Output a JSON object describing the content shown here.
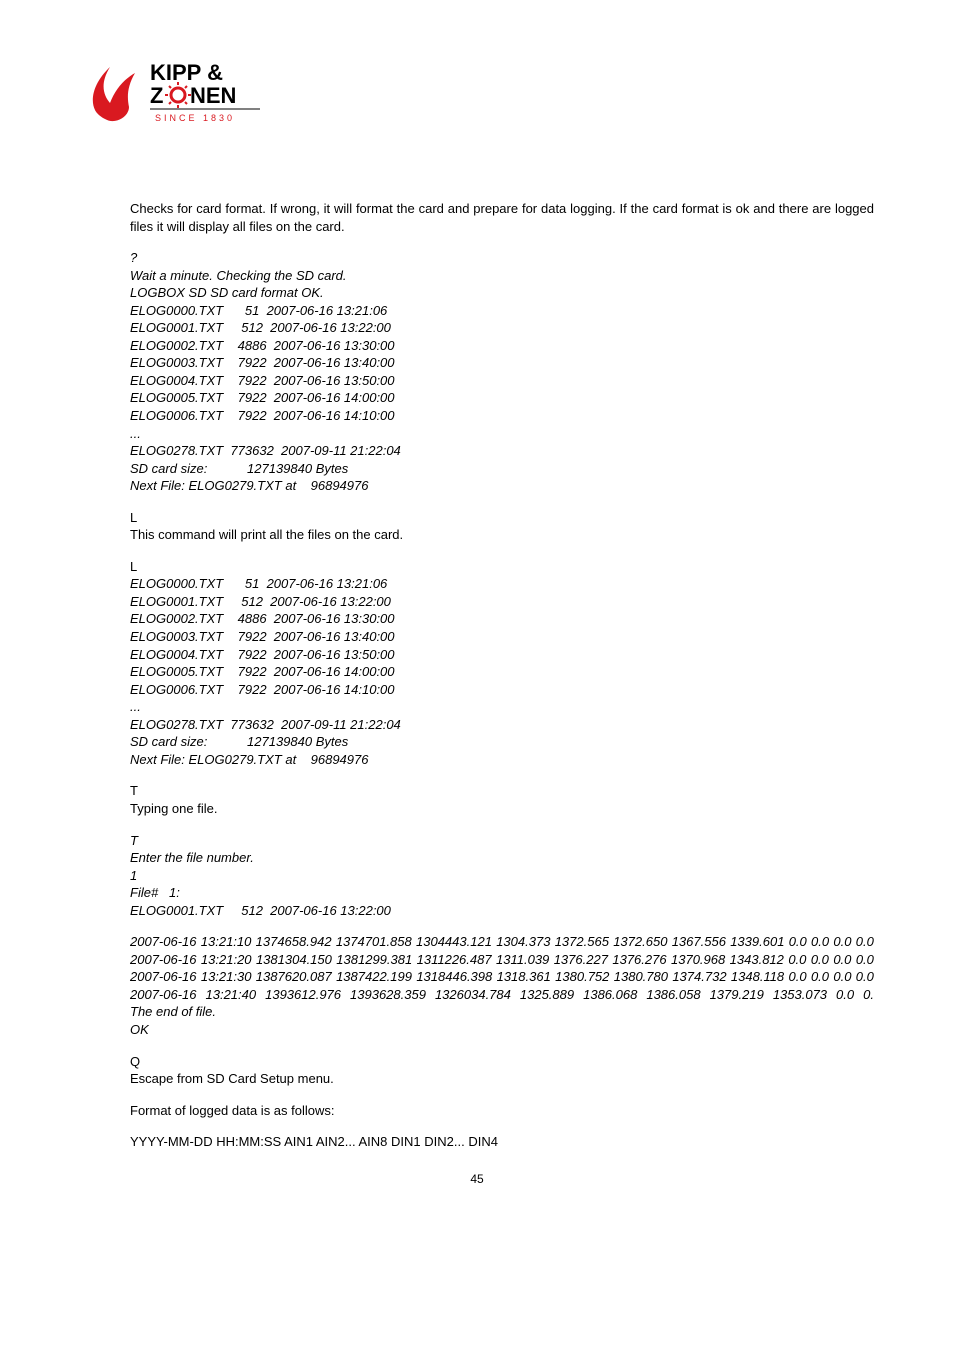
{
  "logo": {
    "brand_top": "KIPP &",
    "brand_bottom": "ZONEN",
    "since": "SINCE 1830",
    "red": "#d91920",
    "black": "#000000"
  },
  "intro": "Checks for card format. If wrong, it will format the card and prepare for data logging. If the card format is ok and there are logged files it will display all files on the card.",
  "block1": {
    "q": "?",
    "wait": "Wait a minute. Checking the SD card.",
    "ok": "LOGBOX SD SD card format OK.",
    "files": [
      "ELOG0000.TXT      51  2007-06-16 13:21:06",
      "ELOG0001.TXT     512  2007-06-16 13:22:00",
      "ELOG0002.TXT    4886  2007-06-16 13:30:00",
      "ELOG0003.TXT    7922  2007-06-16 13:40:00",
      "ELOG0004.TXT    7922  2007-06-16 13:50:00",
      "ELOG0005.TXT    7922  2007-06-16 14:00:00",
      "ELOG0006.TXT    7922  2007-06-16 14:10:00",
      "...",
      "ELOG0278.TXT  773632  2007-09-11 21:22:04"
    ],
    "size": "SD card size:           127139840 Bytes",
    "next": "Next File: ELOG0279.TXT at    96894976"
  },
  "cmdL": {
    "letter": "L",
    "desc": "This command will print all the files on the card."
  },
  "block2": {
    "letter": "L",
    "files": [
      "ELOG0000.TXT      51  2007-06-16 13:21:06",
      "ELOG0001.TXT     512  2007-06-16 13:22:00",
      "ELOG0002.TXT    4886  2007-06-16 13:30:00",
      "ELOG0003.TXT    7922  2007-06-16 13:40:00",
      "ELOG0004.TXT    7922  2007-06-16 13:50:00",
      "ELOG0005.TXT    7922  2007-06-16 14:00:00",
      "ELOG0006.TXT    7922  2007-06-16 14:10:00",
      "...",
      "ELOG0278.TXT  773632  2007-09-11 21:22:04"
    ],
    "size": "SD card size:           127139840 Bytes",
    "next": "Next File: ELOG0279.TXT at    96894976"
  },
  "cmdT": {
    "letter": "T",
    "desc": "Typing one file."
  },
  "block3": {
    "t": "T",
    "enter": "Enter the file number.",
    "one": "1",
    "filehdr": "File#   1:",
    "fileline": "ELOG0001.TXT     512  2007-06-16 13:22:00",
    "rows": [
      "2007-06-16 13:21:10  1374658.942 1374701.858 1304443.121 1304.373 1372.565 1372.650 1367.556 1339.601   0.0   0.0   0.0   0.0",
      "2007-06-16 13:21:20  1381304.150 1381299.381 1311226.487 1311.039 1376.227 1376.276 1370.968 1343.812   0.0   0.0   0.0   0.0",
      "2007-06-16 13:21:30  1387620.087 1387422.199 1318446.398 1318.361 1380.752 1380.780 1374.732 1348.118   0.0   0.0   0.0   0.0",
      "2007-06-16 13:21:40  1393612.976 1393628.359 1326034.784 1325.889 1386.068 1386.058 1379.219 1353.073   0.0   0."
    ],
    "end": "The end of file.",
    "ok": "OK"
  },
  "cmdQ": {
    "letter": "Q",
    "desc": "Escape from SD Card Setup menu."
  },
  "format_intro": "Format of logged data is as follows:",
  "format_line": "YYYY-MM-DD HH:MM:SS AIN1 AIN2... AIN8 DIN1 DIN2... DIN4",
  "page_number": "45"
}
